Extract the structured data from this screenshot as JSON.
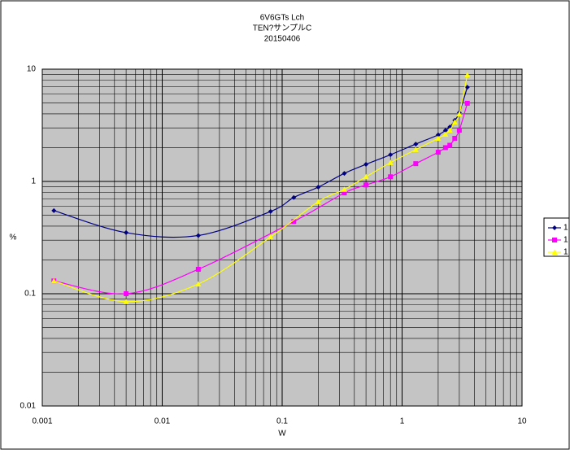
{
  "chart_data": {
    "type": "scatter",
    "title": [
      "6V6GTs  Lch",
      "TEN?サンプルC",
      "20150406"
    ],
    "x_label": "W",
    "y_label": "%",
    "xscale": "log",
    "yscale": "log",
    "xlim": [
      0.001,
      10
    ],
    "ylim": [
      0.01,
      10
    ],
    "xticks": [
      0.001,
      0.01,
      0.1,
      1,
      10
    ],
    "yticks": [
      0.01,
      0.1,
      1,
      10
    ],
    "grid": true,
    "legend": "right",
    "series": [
      {
        "name": "1",
        "color": "#000080",
        "marker": "diamond",
        "x": [
          0.00125,
          0.005,
          0.02,
          0.08,
          0.125,
          0.2,
          0.33,
          0.5,
          0.8,
          1.3,
          2,
          2.3,
          2.5,
          2.75,
          3,
          3.5
        ],
        "values": [
          0.55,
          0.35,
          0.33,
          0.54,
          0.72,
          0.89,
          1.18,
          1.42,
          1.73,
          2.15,
          2.6,
          2.85,
          3.05,
          3.5,
          4.1,
          6.9
        ]
      },
      {
        "name": "1",
        "color": "#ff00ff",
        "marker": "square",
        "x": [
          0.00125,
          0.005,
          0.02,
          0.125,
          0.33,
          0.5,
          0.8,
          1.3,
          2,
          2.3,
          2.5,
          2.75,
          3,
          3.5
        ],
        "values": [
          0.13,
          0.1,
          0.165,
          0.44,
          0.79,
          0.93,
          1.1,
          1.44,
          1.82,
          2.0,
          2.1,
          2.42,
          2.86,
          4.97
        ]
      },
      {
        "name": "1",
        "color": "#ffff00",
        "marker": "triangle",
        "x": [
          0.00125,
          0.005,
          0.02,
          0.08,
          0.2,
          0.33,
          0.5,
          0.8,
          1.3,
          2,
          2.3,
          2.5,
          2.75,
          3,
          3.5
        ],
        "values": [
          0.13,
          0.085,
          0.122,
          0.32,
          0.66,
          0.85,
          1.1,
          1.47,
          1.92,
          2.42,
          2.63,
          2.86,
          3.38,
          3.99,
          8.9
        ]
      }
    ]
  }
}
